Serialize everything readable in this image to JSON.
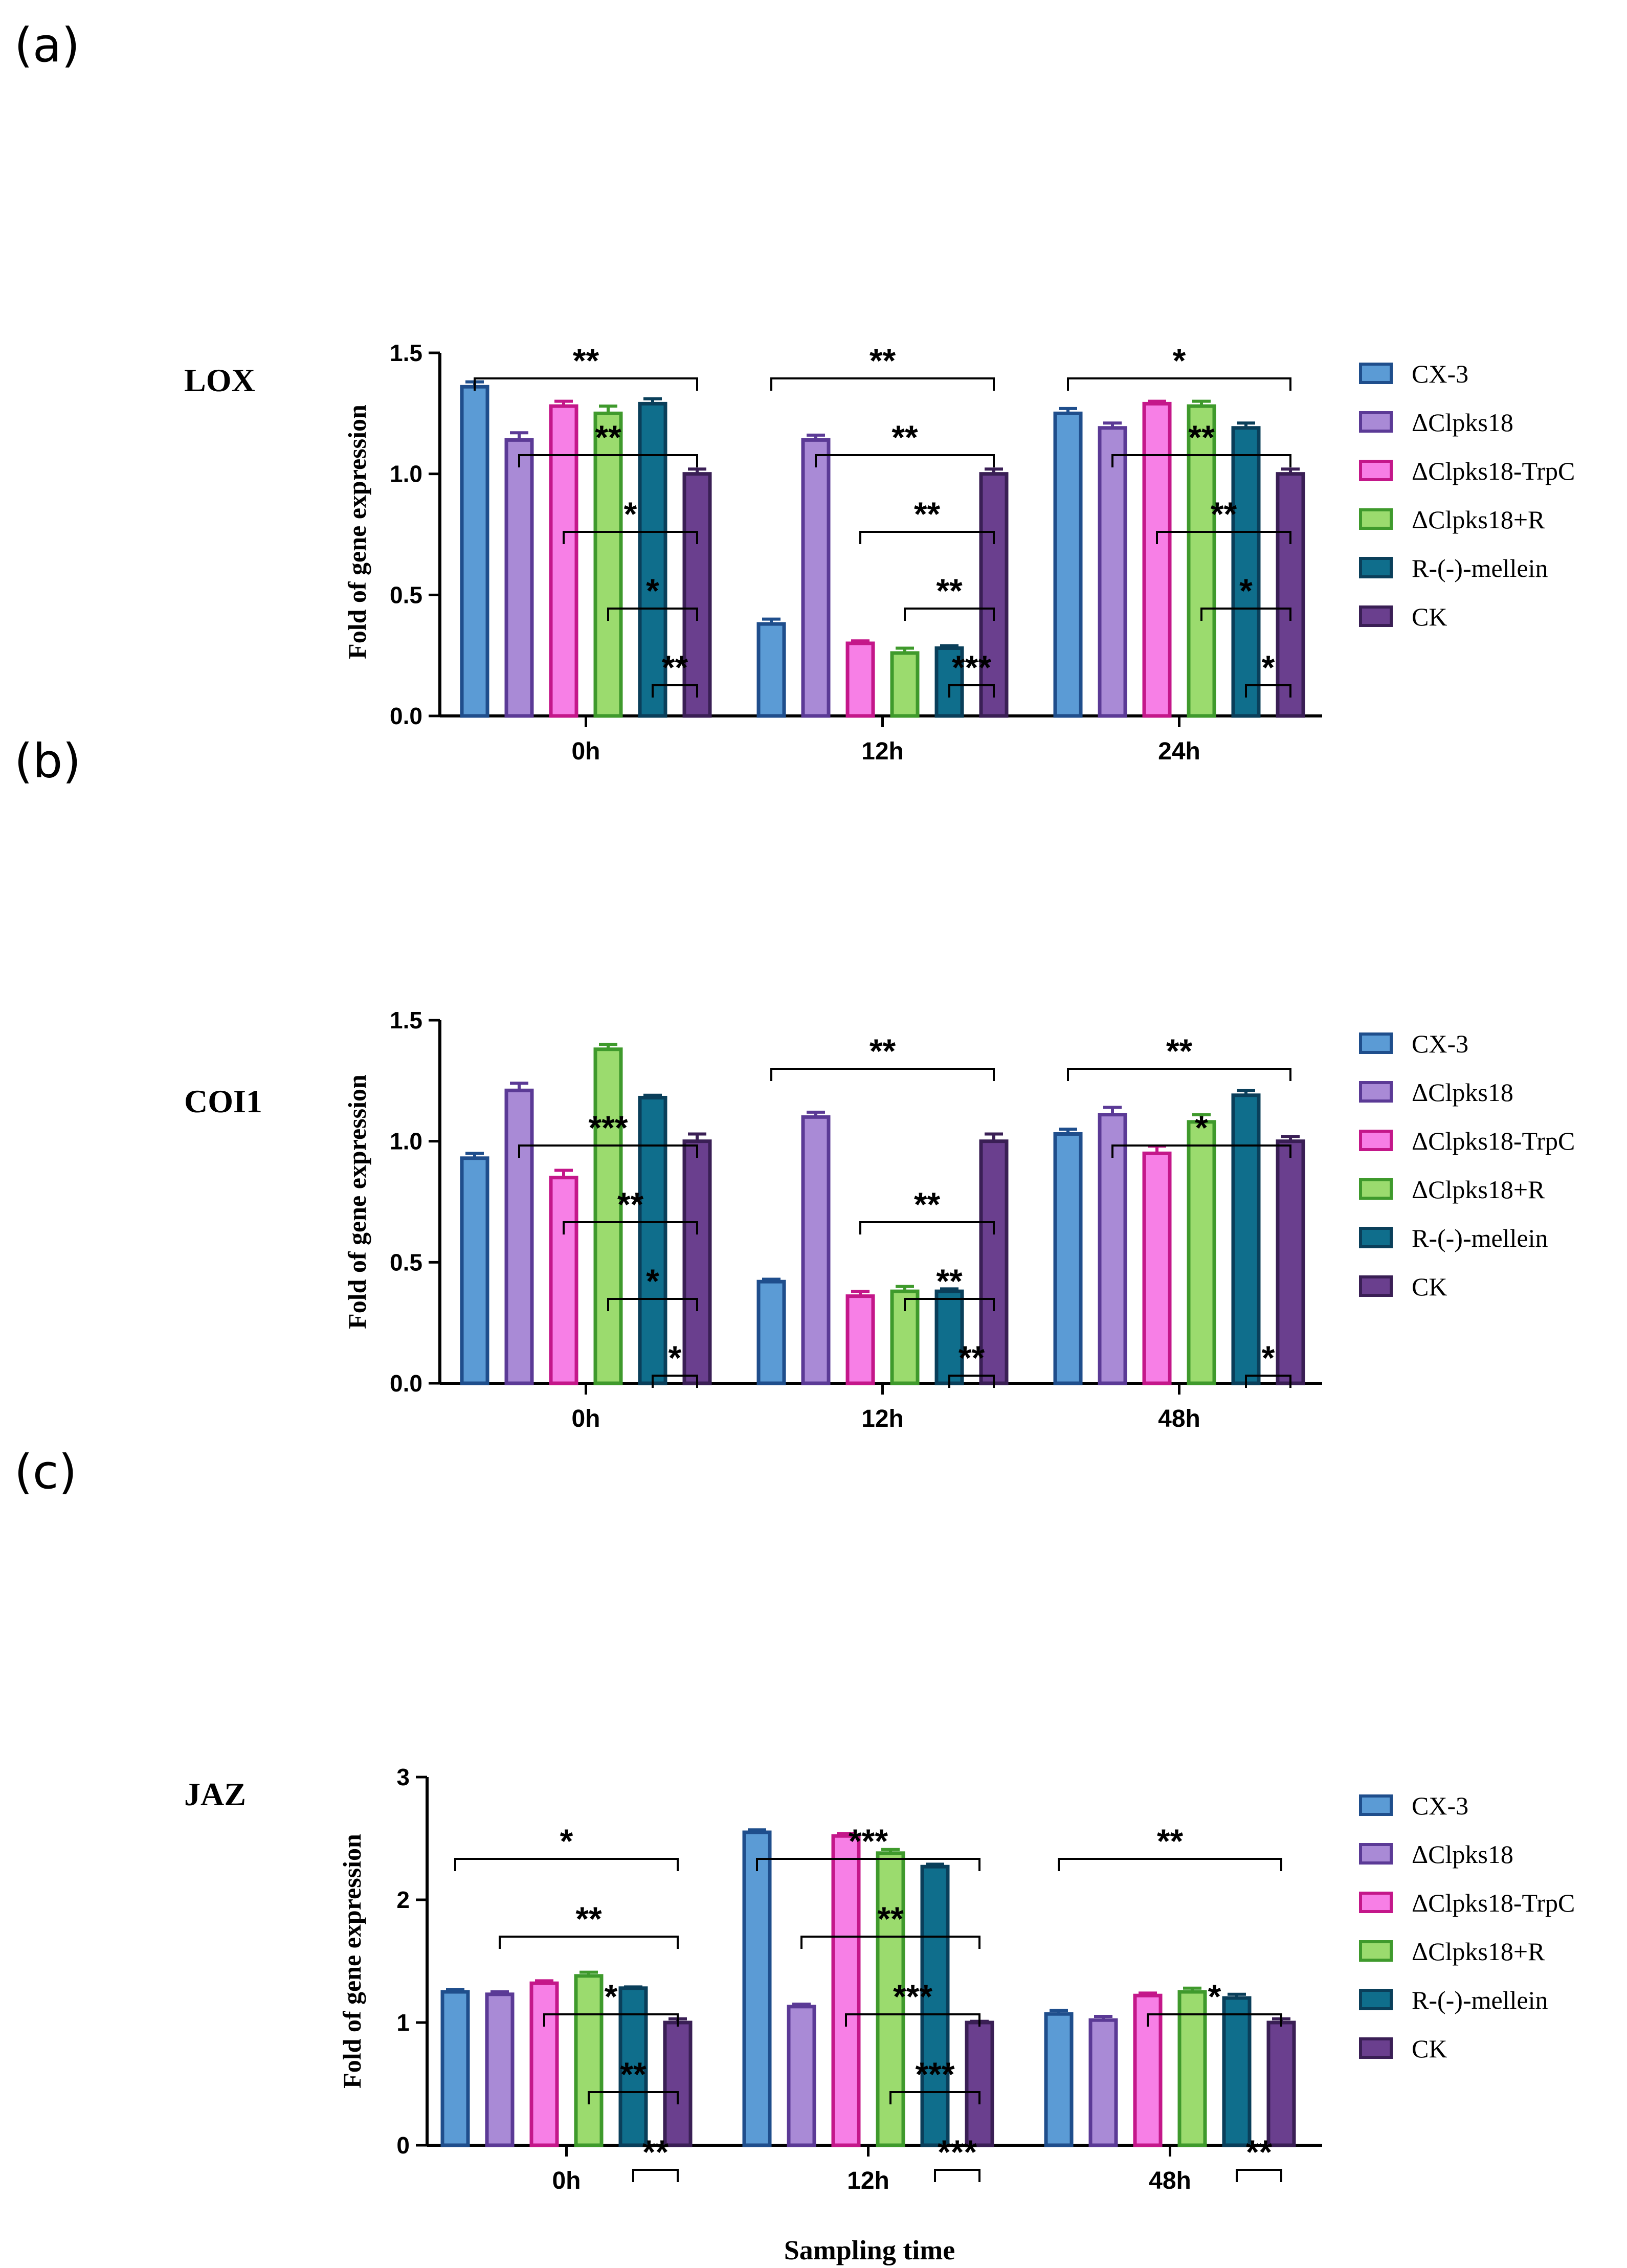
{
  "colors": {
    "CX-3": {
      "fill": "#5B9BD5",
      "stroke": "#1F4E8C"
    },
    "ΔClpks18": {
      "fill": "#A98AD6",
      "stroke": "#5B3A96"
    },
    "ΔClpks18-TrpC": {
      "fill": "#F77FE6",
      "stroke": "#C4178A"
    },
    "ΔClpks18+R": {
      "fill": "#9BDB6E",
      "stroke": "#3F9A2C"
    },
    "R-(-)-mellein": {
      "fill": "#0F6E8C",
      "stroke": "#0A3F5A"
    },
    "CK": {
      "fill": "#6A3F8E",
      "stroke": "#3A1F55"
    }
  },
  "x_axis_title": "Sampling time",
  "chart_data": [
    {
      "type": "bar",
      "panel_label": "(a)",
      "gene": "LOX",
      "ylabel": "Fold of gene expression",
      "ylim": [
        0,
        1.5
      ],
      "yticks": [
        "0.0",
        "0.5",
        "1.0",
        "1.5"
      ],
      "categories": [
        "0h",
        "12h",
        "24h"
      ],
      "series": [
        {
          "name": "CX-3",
          "values": [
            1.36,
            0.38,
            1.25
          ],
          "errors": [
            0.02,
            0.02,
            0.02
          ]
        },
        {
          "name": "ΔClpks18",
          "values": [
            1.14,
            1.14,
            1.19
          ],
          "errors": [
            0.03,
            0.02,
            0.02
          ]
        },
        {
          "name": "ΔClpks18-TrpC",
          "values": [
            1.28,
            0.3,
            1.29
          ],
          "errors": [
            0.02,
            0.01,
            0.01
          ]
        },
        {
          "name": "ΔClpks18+R",
          "values": [
            1.25,
            0.26,
            1.28
          ],
          "errors": [
            0.03,
            0.02,
            0.02
          ]
        },
        {
          "name": "R-(-)-mellein",
          "values": [
            1.29,
            0.28,
            1.19
          ],
          "errors": [
            0.02,
            0.01,
            0.02
          ]
        },
        {
          "name": "CK",
          "values": [
            1.0,
            1.0,
            1.0
          ],
          "errors": [
            0.02,
            0.02,
            0.02
          ]
        }
      ],
      "significance": [
        {
          "group": 0,
          "from": 0,
          "to": 5,
          "label": "**"
        },
        {
          "group": 0,
          "from": 1,
          "to": 5,
          "label": "**"
        },
        {
          "group": 0,
          "from": 2,
          "to": 5,
          "label": "*"
        },
        {
          "group": 0,
          "from": 3,
          "to": 5,
          "label": "*"
        },
        {
          "group": 0,
          "from": 4,
          "to": 5,
          "label": "**"
        },
        {
          "group": 1,
          "from": 0,
          "to": 5,
          "label": "**"
        },
        {
          "group": 1,
          "from": 1,
          "to": 5,
          "label": "**"
        },
        {
          "group": 1,
          "from": 2,
          "to": 5,
          "label": "**"
        },
        {
          "group": 1,
          "from": 3,
          "to": 5,
          "label": "**"
        },
        {
          "group": 1,
          "from": 4,
          "to": 5,
          "label": "***"
        },
        {
          "group": 2,
          "from": 0,
          "to": 5,
          "label": "*"
        },
        {
          "group": 2,
          "from": 1,
          "to": 5,
          "label": "**"
        },
        {
          "group": 2,
          "from": 2,
          "to": 5,
          "label": "**"
        },
        {
          "group": 2,
          "from": 3,
          "to": 5,
          "label": "*"
        },
        {
          "group": 2,
          "from": 4,
          "to": 5,
          "label": "*"
        }
      ]
    },
    {
      "type": "bar",
      "panel_label": "(b)",
      "gene": "COI1",
      "ylabel": "Fold of gene expression",
      "ylim": [
        0,
        1.5
      ],
      "yticks": [
        "0.0",
        "0.5",
        "1.0",
        "1.5"
      ],
      "categories": [
        "0h",
        "12h",
        "48h"
      ],
      "series": [
        {
          "name": "CX-3",
          "values": [
            0.93,
            0.42,
            1.03
          ],
          "errors": [
            0.02,
            0.01,
            0.02
          ]
        },
        {
          "name": "ΔClpks18",
          "values": [
            1.21,
            1.1,
            1.11
          ],
          "errors": [
            0.03,
            0.02,
            0.03
          ]
        },
        {
          "name": "ΔClpks18-TrpC",
          "values": [
            0.85,
            0.36,
            0.95
          ],
          "errors": [
            0.03,
            0.02,
            0.03
          ]
        },
        {
          "name": "ΔClpks18+R",
          "values": [
            1.38,
            0.38,
            1.08
          ],
          "errors": [
            0.02,
            0.02,
            0.03
          ]
        },
        {
          "name": "R-(-)-mellein",
          "values": [
            1.18,
            0.38,
            1.19
          ],
          "errors": [
            0.01,
            0.01,
            0.02
          ]
        },
        {
          "name": "CK",
          "values": [
            1.0,
            1.0,
            1.0
          ],
          "errors": [
            0.03,
            0.03,
            0.02
          ]
        }
      ],
      "significance": [
        {
          "group": 0,
          "from": 1,
          "to": 5,
          "label": "***"
        },
        {
          "group": 0,
          "from": 2,
          "to": 5,
          "label": "**"
        },
        {
          "group": 0,
          "from": 3,
          "to": 5,
          "label": "*"
        },
        {
          "group": 0,
          "from": 4,
          "to": 5,
          "label": "*"
        },
        {
          "group": 1,
          "from": 0,
          "to": 5,
          "label": "**"
        },
        {
          "group": 1,
          "from": 2,
          "to": 5,
          "label": "**"
        },
        {
          "group": 1,
          "from": 3,
          "to": 5,
          "label": "**"
        },
        {
          "group": 1,
          "from": 4,
          "to": 5,
          "label": "**"
        },
        {
          "group": 2,
          "from": 0,
          "to": 5,
          "label": "**"
        },
        {
          "group": 2,
          "from": 1,
          "to": 5,
          "label": "*"
        },
        {
          "group": 2,
          "from": 4,
          "to": 5,
          "label": "*"
        }
      ]
    },
    {
      "type": "bar",
      "panel_label": "(c)",
      "gene": "JAZ",
      "ylabel": "Fold of gene expression",
      "ylim": [
        0,
        3
      ],
      "yticks": [
        "0",
        "1",
        "2",
        "3"
      ],
      "categories": [
        "0h",
        "12h",
        "48h"
      ],
      "series": [
        {
          "name": "CX-3",
          "values": [
            1.25,
            2.55,
            1.07
          ],
          "errors": [
            0.02,
            0.02,
            0.03
          ]
        },
        {
          "name": "ΔClpks18",
          "values": [
            1.23,
            1.13,
            1.02
          ],
          "errors": [
            0.02,
            0.02,
            0.03
          ]
        },
        {
          "name": "ΔClpks18-TrpC",
          "values": [
            1.32,
            2.52,
            1.22
          ],
          "errors": [
            0.02,
            0.02,
            0.02
          ]
        },
        {
          "name": "ΔClpks18+R",
          "values": [
            1.38,
            2.38,
            1.25
          ],
          "errors": [
            0.03,
            0.03,
            0.03
          ]
        },
        {
          "name": "R-(-)-mellein",
          "values": [
            1.28,
            2.27,
            1.2
          ],
          "errors": [
            0.01,
            0.02,
            0.03
          ]
        },
        {
          "name": "CK",
          "values": [
            1.0,
            1.0,
            1.0
          ],
          "errors": [
            0.03,
            0.01,
            0.03
          ]
        }
      ],
      "significance": [
        {
          "group": 0,
          "from": 0,
          "to": 5,
          "label": "*"
        },
        {
          "group": 0,
          "from": 1,
          "to": 5,
          "label": "**"
        },
        {
          "group": 0,
          "from": 2,
          "to": 5,
          "label": "*"
        },
        {
          "group": 0,
          "from": 3,
          "to": 5,
          "label": "**"
        },
        {
          "group": 0,
          "from": 4,
          "to": 5,
          "label": "**"
        },
        {
          "group": 1,
          "from": 0,
          "to": 5,
          "label": "***"
        },
        {
          "group": 1,
          "from": 1,
          "to": 5,
          "label": "**"
        },
        {
          "group": 1,
          "from": 2,
          "to": 5,
          "label": "***"
        },
        {
          "group": 1,
          "from": 3,
          "to": 5,
          "label": "***"
        },
        {
          "group": 1,
          "from": 4,
          "to": 5,
          "label": "***"
        },
        {
          "group": 2,
          "from": 0,
          "to": 5,
          "label": "**"
        },
        {
          "group": 2,
          "from": 2,
          "to": 5,
          "label": "*"
        },
        {
          "group": 2,
          "from": 4,
          "to": 5,
          "label": "**"
        }
      ]
    }
  ]
}
